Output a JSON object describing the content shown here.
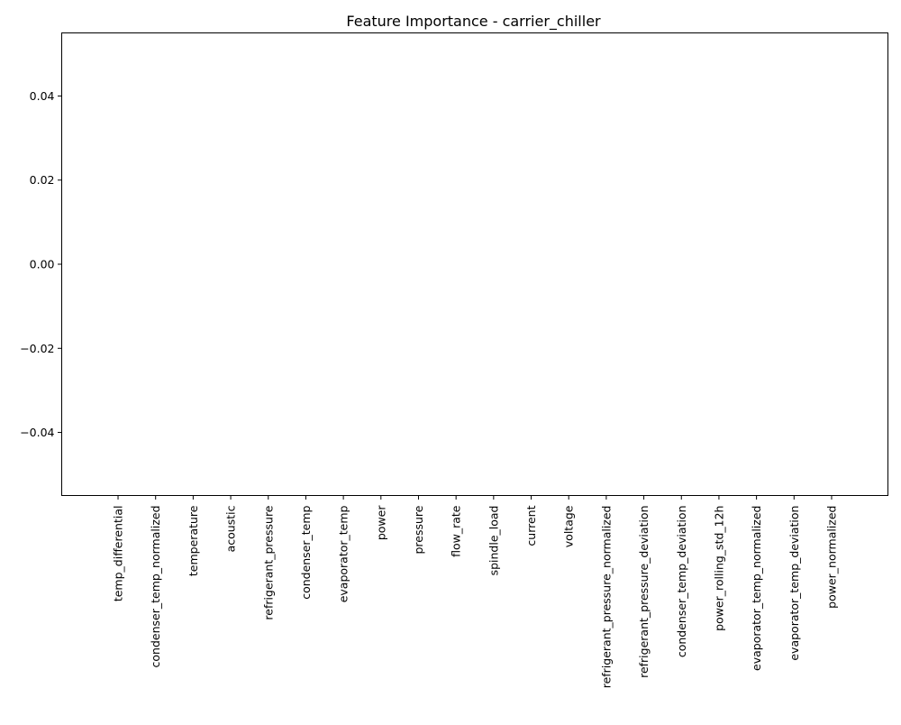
{
  "chart_data": {
    "type": "bar",
    "title": "Feature Importance - carrier_chiller",
    "xlabel": "",
    "ylabel": "",
    "categories": [
      "temp_differential",
      "condenser_temp_normalized",
      "temperature",
      "acoustic",
      "refrigerant_pressure",
      "condenser_temp",
      "evaporator_temp",
      "power",
      "pressure",
      "flow_rate",
      "spindle_load",
      "current",
      "voltage",
      "refrigerant_pressure_normalized",
      "refrigerant_pressure_deviation",
      "condenser_temp_deviation",
      "power_rolling_std_12h",
      "evaporator_temp_normalized",
      "evaporator_temp_deviation",
      "power_normalized"
    ],
    "values": [
      0,
      0,
      0,
      0,
      0,
      0,
      0,
      0,
      0,
      0,
      0,
      0,
      0,
      0,
      0,
      0,
      0,
      0,
      0,
      0
    ],
    "ylim": [
      -0.055,
      0.055
    ],
    "yticks": [
      -0.04,
      -0.02,
      0.0,
      0.02,
      0.04
    ],
    "ytick_labels": [
      "−0.04",
      "−0.02",
      "0.00",
      "0.02",
      "0.04"
    ],
    "grid": false,
    "legend": "none",
    "bar_color": "#1f77b4"
  }
}
